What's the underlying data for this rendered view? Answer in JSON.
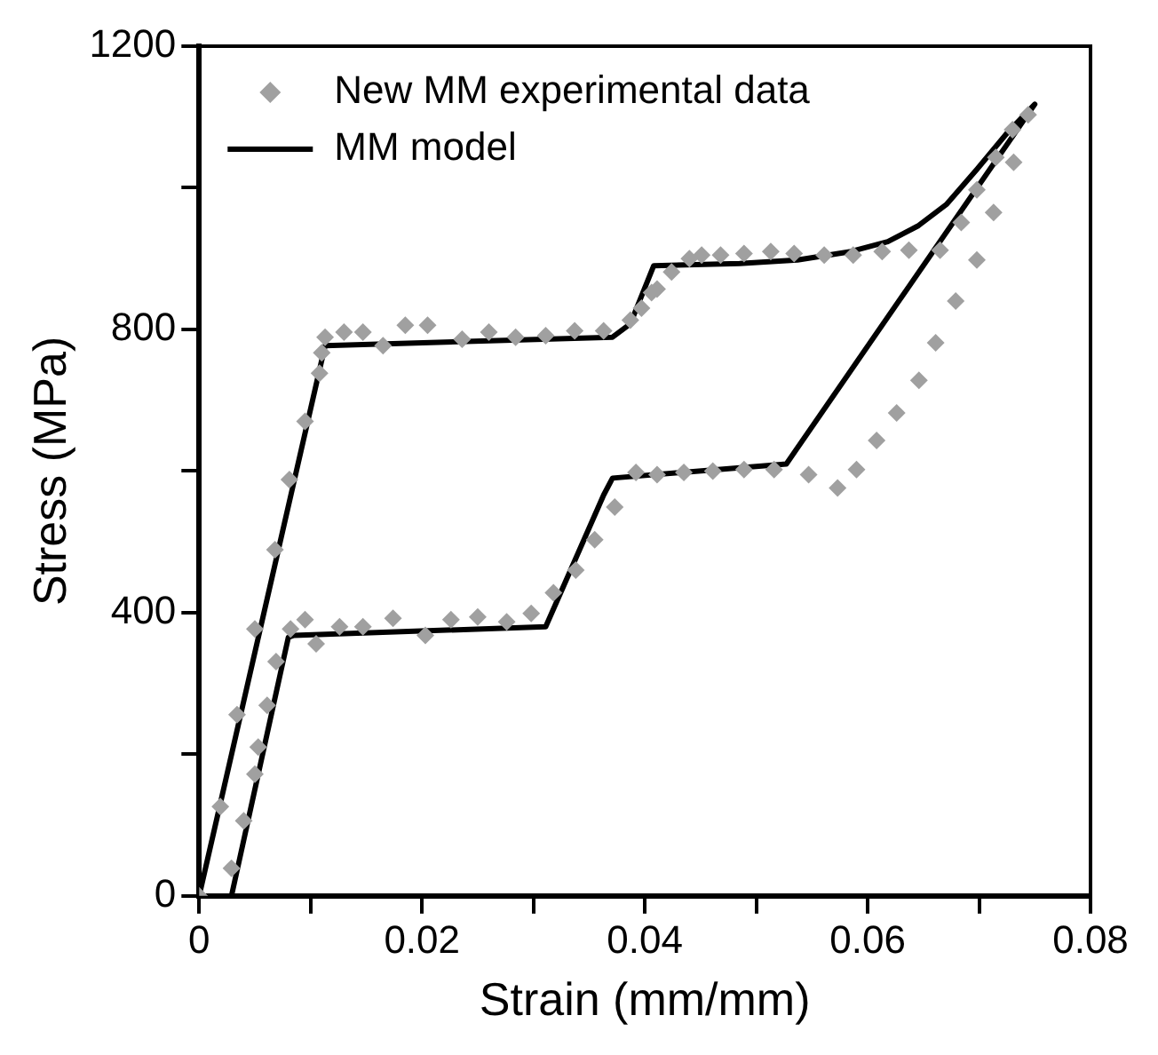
{
  "chart_data": {
    "type": "line",
    "xlabel": "Strain (mm/mm)",
    "ylabel": "Stress (MPa)",
    "xlim": [
      0,
      0.08
    ],
    "xticks": [
      0,
      {
        "value": 0.01,
        "label": null
      },
      0.02,
      {
        "value": 0.03,
        "label": null
      },
      0.04,
      {
        "value": 0.05,
        "label": null
      },
      0.06,
      {
        "value": 0.07,
        "label": null
      },
      0.08
    ],
    "ylim": [
      0,
      1200
    ],
    "yticks": [
      0,
      {
        "value": 200,
        "label": null
      },
      400,
      {
        "value": 600,
        "label": null
      },
      800,
      {
        "value": 1000,
        "label": null
      },
      1200
    ],
    "grid": false,
    "legend": "top left",
    "series": [
      {
        "name": "New MM experimental data",
        "type": "scatter",
        "marker": "diamond",
        "color": "#a0a0a0",
        "x": [
          0,
          0.0019,
          0.0034,
          0.005,
          0.0068,
          0.0081,
          0.0095,
          0.0108,
          0.011,
          0.0113,
          0.013,
          0.0147,
          0.0165,
          0.0185,
          0.0205,
          0.0236,
          0.026,
          0.0284,
          0.0311,
          0.0337,
          0.0363,
          0.0387,
          0.0397,
          0.0406,
          0.0411,
          0.0424,
          0.044,
          0.0451,
          0.0468,
          0.0489,
          0.0513,
          0.0534,
          0.0561,
          0.0587,
          0.0613,
          0.0637,
          0.0665,
          0.0684,
          0.0698,
          0.0715,
          0.073,
          0.0744,
          0.0731,
          0.0713,
          0.0698,
          0.0679,
          0.0661,
          0.0646,
          0.0626,
          0.0608,
          0.059,
          0.0573,
          0.0547,
          0.0516,
          0.0489,
          0.0461,
          0.0435,
          0.0411,
          0.0392,
          0.0373,
          0.0355,
          0.0338,
          0.0318,
          0.0298,
          0.0276,
          0.025,
          0.0226,
          0.0203,
          0.0174,
          0.0147,
          0.0126,
          0.0105,
          0.0095,
          0.0082,
          0.0069,
          0.0061,
          0.0053,
          0.005,
          0.004,
          0.0029
        ],
        "values": [
          0,
          126,
          256,
          377,
          489,
          588,
          670,
          738,
          767,
          789,
          796,
          796,
          777,
          806,
          806,
          786,
          796,
          789,
          791,
          798,
          798,
          813,
          830,
          852,
          857,
          881,
          900,
          905,
          905,
          907,
          910,
          907,
          905,
          905,
          910,
          912,
          912,
          951,
          997,
          1043,
          1082,
          1103,
          1036,
          965,
          898,
          840,
          781,
          728,
          682,
          643,
          602,
          576,
          595,
          602,
          602,
          600,
          598,
          595,
          598,
          549,
          503,
          460,
          428,
          399,
          387,
          394,
          390,
          368,
          392,
          380,
          380,
          356,
          390,
          377,
          331,
          269,
          210,
          172,
          106,
          39
        ]
      },
      {
        "name": "MM model",
        "type": "line",
        "marker": "none",
        "line_style": "solid",
        "color": "#000000",
        "x": [
          0,
          0.0113,
          0.0371,
          0.0387,
          0.0408,
          0.0485,
          0.0537,
          0.0585,
          0.0618,
          0.0645,
          0.0671,
          0.0698,
          0.0726,
          0.075,
          0.0527,
          0.0371,
          0.0363,
          0.0311,
          0.0085,
          0.008,
          0.0029
        ],
        "values": [
          0,
          777,
          789,
          808,
          890,
          893,
          898,
          910,
          924,
          946,
          977,
          1026,
          1079,
          1118,
          610,
          590,
          566,
          380,
          368,
          365,
          0
        ]
      }
    ]
  }
}
